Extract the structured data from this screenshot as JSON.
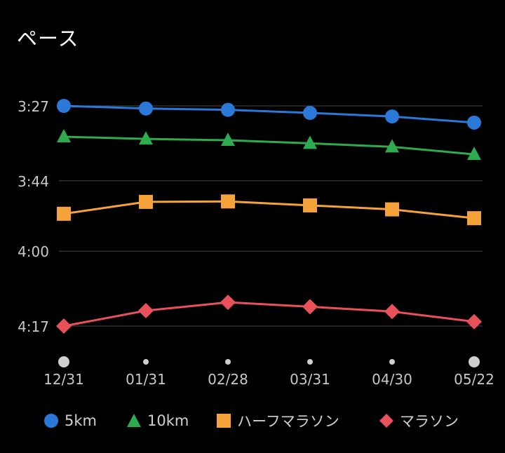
{
  "header": {
    "title": "ペース"
  },
  "colors": {
    "background": "#000000",
    "grid": "#3a3a3a",
    "tick_text": "#c8c8c8",
    "dot": "#cfcfcf"
  },
  "chart_data": {
    "type": "line",
    "title": "ペース",
    "xlabel": "",
    "ylabel": "",
    "categories": [
      "12/31",
      "01/31",
      "02/28",
      "03/31",
      "04/30",
      "05/22"
    ],
    "y_ticks": [
      "3:27",
      "3:44",
      "4:00",
      "4:17"
    ],
    "y_tick_seconds": [
      207,
      224,
      240,
      257
    ],
    "y_inverted": true,
    "grid": true,
    "legend_position": "bottom",
    "x_marker_sizes": [
      "large",
      "small",
      "small",
      "small",
      "small",
      "large"
    ],
    "series": [
      {
        "name": "5km",
        "color": "#2a78d8",
        "marker": "circle",
        "values": [
          207.0,
          207.6,
          207.9,
          208.6,
          209.4,
          210.8
        ]
      },
      {
        "name": "10km",
        "color": "#2eab4f",
        "marker": "triangle",
        "values": [
          214.0,
          214.5,
          214.8,
          215.5,
          216.3,
          218.0
        ]
      },
      {
        "name": "ハーフマラソン",
        "color": "#f6a23a",
        "marker": "square",
        "values": [
          231.5,
          228.8,
          228.7,
          229.6,
          230.5,
          232.5
        ]
      },
      {
        "name": "マラソン",
        "color": "#e8515a",
        "marker": "diamond",
        "values": [
          257.0,
          253.5,
          251.6,
          252.6,
          253.7,
          256.0
        ]
      }
    ]
  }
}
